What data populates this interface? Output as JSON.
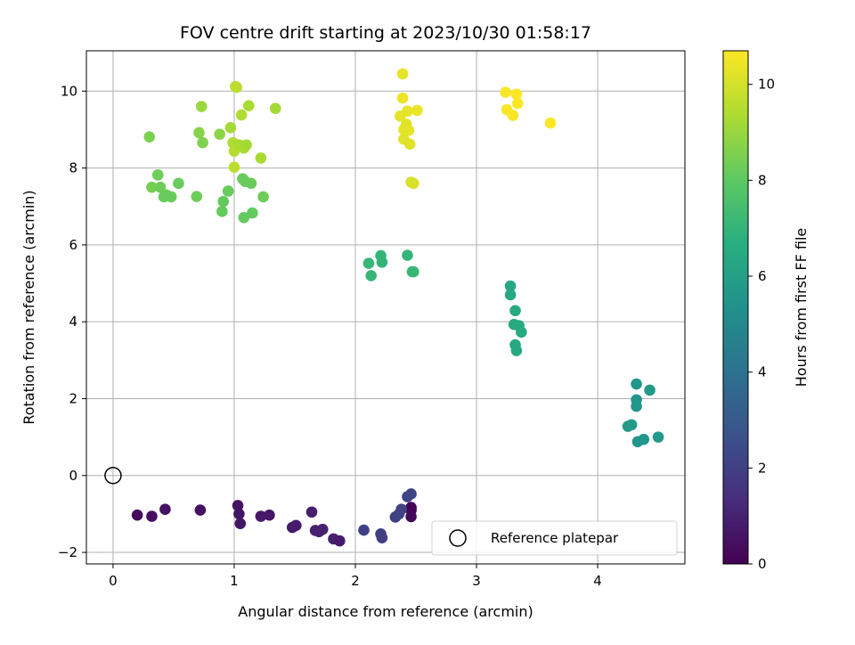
{
  "chart_data": {
    "type": "scatter",
    "title": "FOV centre drift starting at 2023/10/30 01:58:17",
    "xlabel": "Angular distance from reference (arcmin)",
    "ylabel": "Rotation from reference (arcmin)",
    "xlim": [
      -0.22,
      4.72
    ],
    "ylim": [
      -2.3,
      11.05
    ],
    "xticks": [
      0,
      1,
      2,
      3,
      4
    ],
    "yticks": [
      -2,
      0,
      2,
      4,
      6,
      8,
      10
    ],
    "grid": true,
    "legend": {
      "placement": "lower-right",
      "entries": [
        "Reference platepar"
      ]
    },
    "reference_point": {
      "x": 0,
      "y": 0
    },
    "colorbar": {
      "label": "Hours from first FF file",
      "colormap": "viridis",
      "range": [
        0,
        10.7
      ],
      "ticks": [
        0,
        2,
        4,
        6,
        8,
        10
      ]
    },
    "points": [
      [
        0.2,
        -1.03,
        0.3
      ],
      [
        0.32,
        -1.06,
        0.4
      ],
      [
        0.43,
        -0.88,
        0.5
      ],
      [
        0.72,
        -0.9,
        0.5
      ],
      [
        1.03,
        -0.78,
        0.6
      ],
      [
        1.04,
        -1.0,
        0.6
      ],
      [
        1.05,
        -1.25,
        0.6
      ],
      [
        1.22,
        -1.06,
        0.7
      ],
      [
        1.29,
        -1.03,
        0.7
      ],
      [
        1.48,
        -1.35,
        0.8
      ],
      [
        1.51,
        -1.3,
        0.8
      ],
      [
        1.64,
        -0.95,
        0.9
      ],
      [
        1.67,
        -1.43,
        0.9
      ],
      [
        1.7,
        -1.46,
        1.0
      ],
      [
        1.73,
        -1.4,
        1.0
      ],
      [
        1.82,
        -1.65,
        0.9
      ],
      [
        1.87,
        -1.7,
        0.8
      ],
      [
        2.46,
        -0.83,
        0.1
      ],
      [
        2.46,
        -0.9,
        0.1
      ],
      [
        2.46,
        -1.07,
        0.2
      ],
      [
        2.33,
        -1.08,
        2.0
      ],
      [
        2.36,
        -1.0,
        2.1
      ],
      [
        2.38,
        -0.88,
        2.1
      ],
      [
        2.43,
        -0.55,
        2.2
      ],
      [
        2.46,
        -0.48,
        2.2
      ],
      [
        2.07,
        -1.42,
        2.0
      ],
      [
        2.21,
        -1.52,
        2.0
      ],
      [
        2.22,
        -1.62,
        2.0
      ],
      [
        4.32,
        2.38,
        5.6
      ],
      [
        4.32,
        1.97,
        5.6
      ],
      [
        4.32,
        1.8,
        5.6
      ],
      [
        4.43,
        2.22,
        5.7
      ],
      [
        4.25,
        1.28,
        5.8
      ],
      [
        4.28,
        1.32,
        5.8
      ],
      [
        4.33,
        0.88,
        5.6
      ],
      [
        4.38,
        0.94,
        5.6
      ],
      [
        4.5,
        1.0,
        5.7
      ],
      [
        3.28,
        4.93,
        6.4
      ],
      [
        3.28,
        4.7,
        6.4
      ],
      [
        3.31,
        3.93,
        6.4
      ],
      [
        3.32,
        4.29,
        6.5
      ],
      [
        3.35,
        3.9,
        6.5
      ],
      [
        3.37,
        3.73,
        6.5
      ],
      [
        3.32,
        3.4,
        6.4
      ],
      [
        3.33,
        3.25,
        6.4
      ],
      [
        2.11,
        5.52,
        7.1
      ],
      [
        2.13,
        5.2,
        7.1
      ],
      [
        2.21,
        5.72,
        7.0
      ],
      [
        2.22,
        5.55,
        7.0
      ],
      [
        2.43,
        5.73,
        7.0
      ],
      [
        2.47,
        5.3,
        7.1
      ],
      [
        2.48,
        5.3,
        7.1
      ],
      [
        0.3,
        8.81,
        8.5
      ],
      [
        0.32,
        7.5,
        8.4
      ],
      [
        0.37,
        7.82,
        8.3
      ],
      [
        0.39,
        7.5,
        8.3
      ],
      [
        0.42,
        7.25,
        8.2
      ],
      [
        0.44,
        7.3,
        8.2
      ],
      [
        0.48,
        7.25,
        8.2
      ],
      [
        0.54,
        7.6,
        8.2
      ],
      [
        0.69,
        7.26,
        8.3
      ],
      [
        0.71,
        8.92,
        8.7
      ],
      [
        0.73,
        9.6,
        9.0
      ],
      [
        0.74,
        8.66,
        8.6
      ],
      [
        0.88,
        8.88,
        8.8
      ],
      [
        0.9,
        6.87,
        8.1
      ],
      [
        0.91,
        7.13,
        8.1
      ],
      [
        0.95,
        7.4,
        8.2
      ],
      [
        0.97,
        9.05,
        9.2
      ],
      [
        0.99,
        8.66,
        9.4
      ],
      [
        1.0,
        8.44,
        9.5
      ],
      [
        1.0,
        8.02,
        9.6
      ],
      [
        1.01,
        10.12,
        9.6
      ],
      [
        1.02,
        10.1,
        9.6
      ],
      [
        1.04,
        8.6,
        9.3
      ],
      [
        1.06,
        9.38,
        9.4
      ],
      [
        1.07,
        7.72,
        8.2
      ],
      [
        1.08,
        6.71,
        8.1
      ],
      [
        1.09,
        7.65,
        8.2
      ],
      [
        1.08,
        8.52,
        9.3
      ],
      [
        1.1,
        8.6,
        9.2
      ],
      [
        1.12,
        9.62,
        9.3
      ],
      [
        1.14,
        7.6,
        8.2
      ],
      [
        1.15,
        6.83,
        8.1
      ],
      [
        1.22,
        8.26,
        9.3
      ],
      [
        1.24,
        7.25,
        8.3
      ],
      [
        1.34,
        9.55,
        9.2
      ],
      [
        2.39,
        10.45,
        10.3
      ],
      [
        2.39,
        9.82,
        10.4
      ],
      [
        2.37,
        9.35,
        10.3
      ],
      [
        2.4,
        9.0,
        10.3
      ],
      [
        2.4,
        8.75,
        10.2
      ],
      [
        2.42,
        9.14,
        10.2
      ],
      [
        2.43,
        9.48,
        10.3
      ],
      [
        2.44,
        8.98,
        10.3
      ],
      [
        2.45,
        8.62,
        10.2
      ],
      [
        2.46,
        7.63,
        10.1
      ],
      [
        2.48,
        7.6,
        10.1
      ],
      [
        2.51,
        9.5,
        10.4
      ],
      [
        3.24,
        9.97,
        10.6
      ],
      [
        3.25,
        9.52,
        10.6
      ],
      [
        3.3,
        9.37,
        10.6
      ],
      [
        3.33,
        9.92,
        10.7
      ],
      [
        3.34,
        9.68,
        10.7
      ],
      [
        3.61,
        9.17,
        10.7
      ]
    ]
  }
}
